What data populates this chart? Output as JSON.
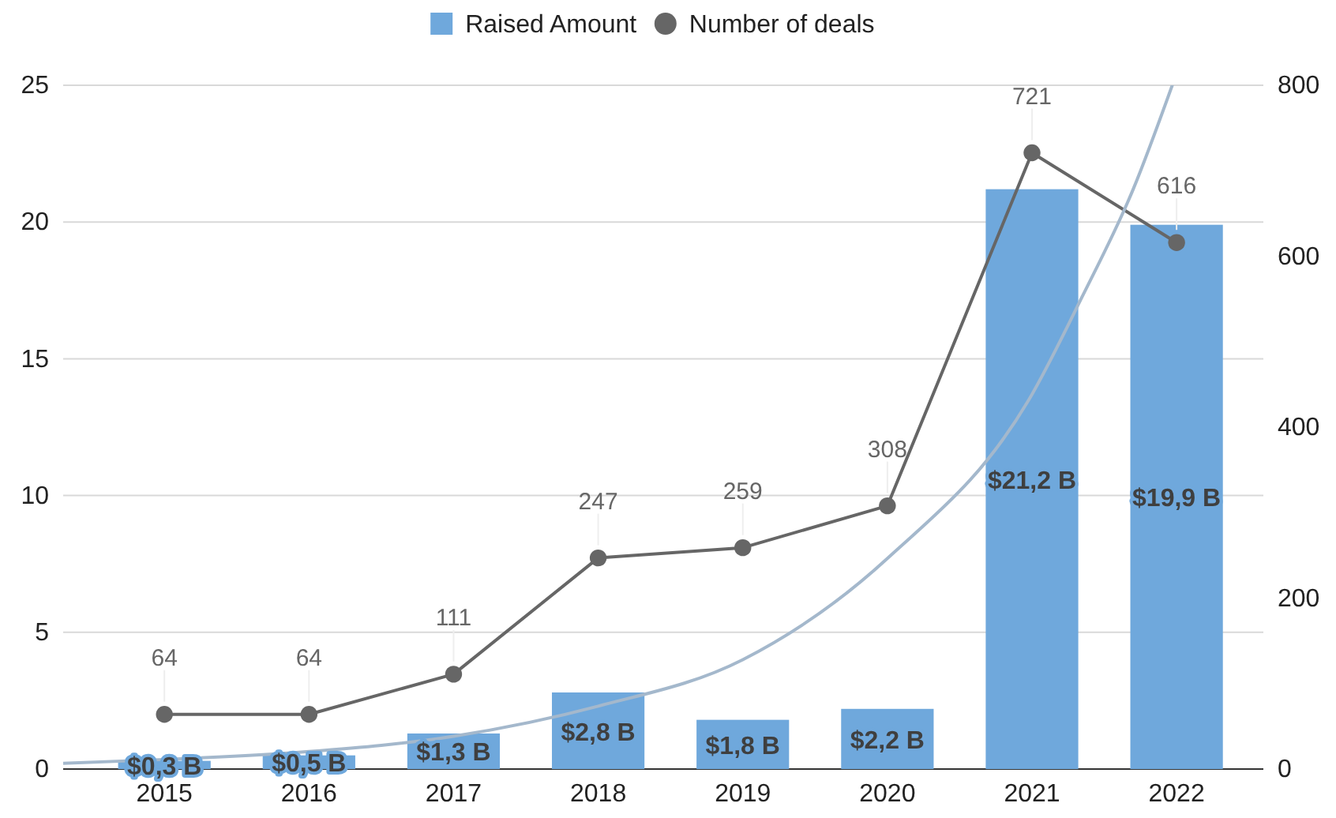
{
  "chart_data": {
    "type": "bar",
    "x": [
      2015,
      2016,
      2017,
      2018,
      2019,
      2020,
      2021,
      2022
    ],
    "xlim": [
      2014.3,
      2022.6
    ],
    "xticks": [
      2015,
      2016,
      2017,
      2018,
      2019,
      2020,
      2021,
      2022
    ],
    "ylim": [
      0,
      25
    ],
    "yticks": [
      0,
      5,
      10,
      15,
      20,
      25
    ],
    "y2lim": [
      0,
      800
    ],
    "y2ticks": [
      0,
      200,
      400,
      600,
      800
    ],
    "grid": "y",
    "legend": "top",
    "series": [
      {
        "name": "Raised Amount",
        "color": "#6fa8dc",
        "values": [
          0.3,
          0.5,
          1.3,
          2.8,
          1.8,
          2.2,
          21.2,
          19.9
        ],
        "value_labels": [
          "$0,3 B",
          "$0,5 B",
          "$1,3 B",
          "$2,8 B",
          "$1,8 B",
          "$2,2 B",
          "$21,2 B",
          "$19,9 B"
        ]
      },
      {
        "name": "Number of deals",
        "type": "line",
        "axis": "y2",
        "color": "#666666",
        "marker": "circle",
        "values": [
          64,
          64,
          111,
          247,
          259,
          308,
          721,
          616
        ],
        "value_labels": [
          "64",
          "64",
          "111",
          "247",
          "259",
          "308",
          "721",
          "616"
        ]
      },
      {
        "type": "line",
        "color": "#a4b8cc",
        "marker": "none",
        "x": [
          2014.3,
          2015,
          2016,
          2017,
          2018,
          2019,
          2020,
          2021,
          2021.35,
          2021.7,
          2021.97
        ],
        "values": [
          0.21,
          0.35,
          0.64,
          1.2,
          2.3,
          4.0,
          7.7,
          13.7,
          17.3,
          21.2,
          25
        ]
      }
    ]
  }
}
